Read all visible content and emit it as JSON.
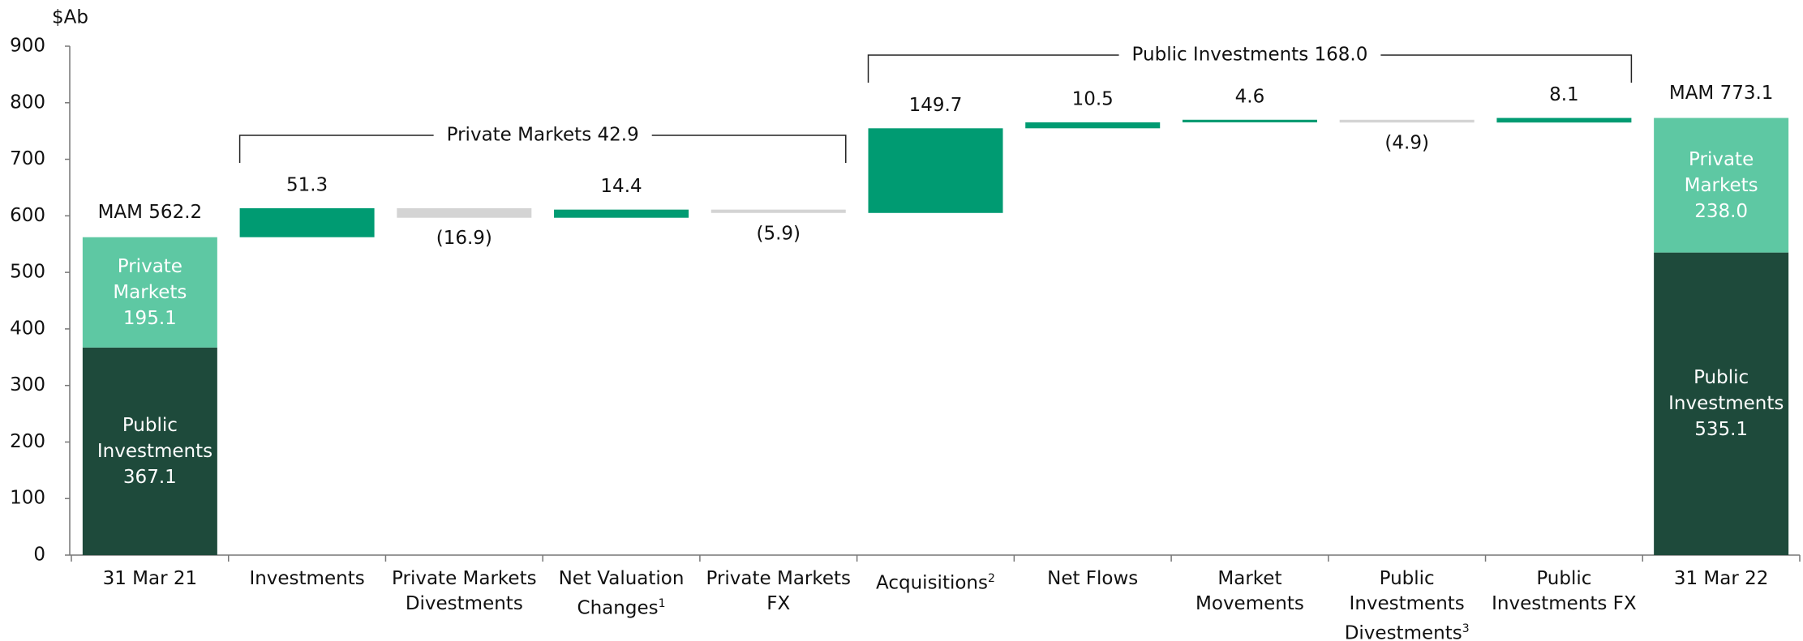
{
  "chart_data": {
    "type": "waterfall",
    "y_label": "$Ab",
    "ylim": [
      0,
      900
    ],
    "yticks": [
      0,
      100,
      200,
      300,
      400,
      500,
      600,
      700,
      800,
      900
    ],
    "categories": [
      "31 Mar 21",
      "Investments",
      "Private Markets Divestments",
      "Net Valuation Changes",
      "Private Markets FX",
      "Acquisitions",
      "Net Flows",
      "Market Movements",
      "Public Investments Divestments",
      "Public Investments FX",
      "31 Mar 22"
    ],
    "category_notes": [
      null,
      null,
      null,
      "1",
      null,
      "2",
      null,
      null,
      "3",
      null,
      null
    ],
    "start": {
      "total": 562.2,
      "total_label": "MAM 562.2",
      "segments": [
        {
          "name": "Public Investments",
          "value": 367.1,
          "value_label": "367.1",
          "color": "#1e4a3b"
        },
        {
          "name": "Private Markets",
          "value": 195.1,
          "value_label": "195.1",
          "color": "#5ec8a3"
        }
      ]
    },
    "changes": {
      "values": [
        51.3,
        -16.9,
        14.4,
        -5.9,
        149.7,
        10.5,
        4.6,
        -4.9,
        8.1
      ],
      "value_labels": [
        "51.3",
        "(16.9)",
        "14.4",
        "(5.9)",
        "149.7",
        "10.5",
        "4.6",
        "(4.9)",
        "8.1"
      ],
      "increase_color": "#009b72",
      "decrease_color": "#d4d4d4"
    },
    "end": {
      "total": 773.1,
      "total_label": "MAM 773.1",
      "segments": [
        {
          "name": "Public Investments",
          "value": 535.1,
          "value_label": "535.1",
          "color": "#1e4a3b"
        },
        {
          "name": "Private Markets",
          "value": 238.0,
          "value_label": "238.0",
          "color": "#5ec8a3"
        }
      ]
    },
    "groups": [
      {
        "label": "Private Markets 42.9",
        "value": 42.9,
        "first": 1,
        "last": 4
      },
      {
        "label": "Public Investments 168.0",
        "value": 168.0,
        "first": 5,
        "last": 9
      }
    ]
  }
}
